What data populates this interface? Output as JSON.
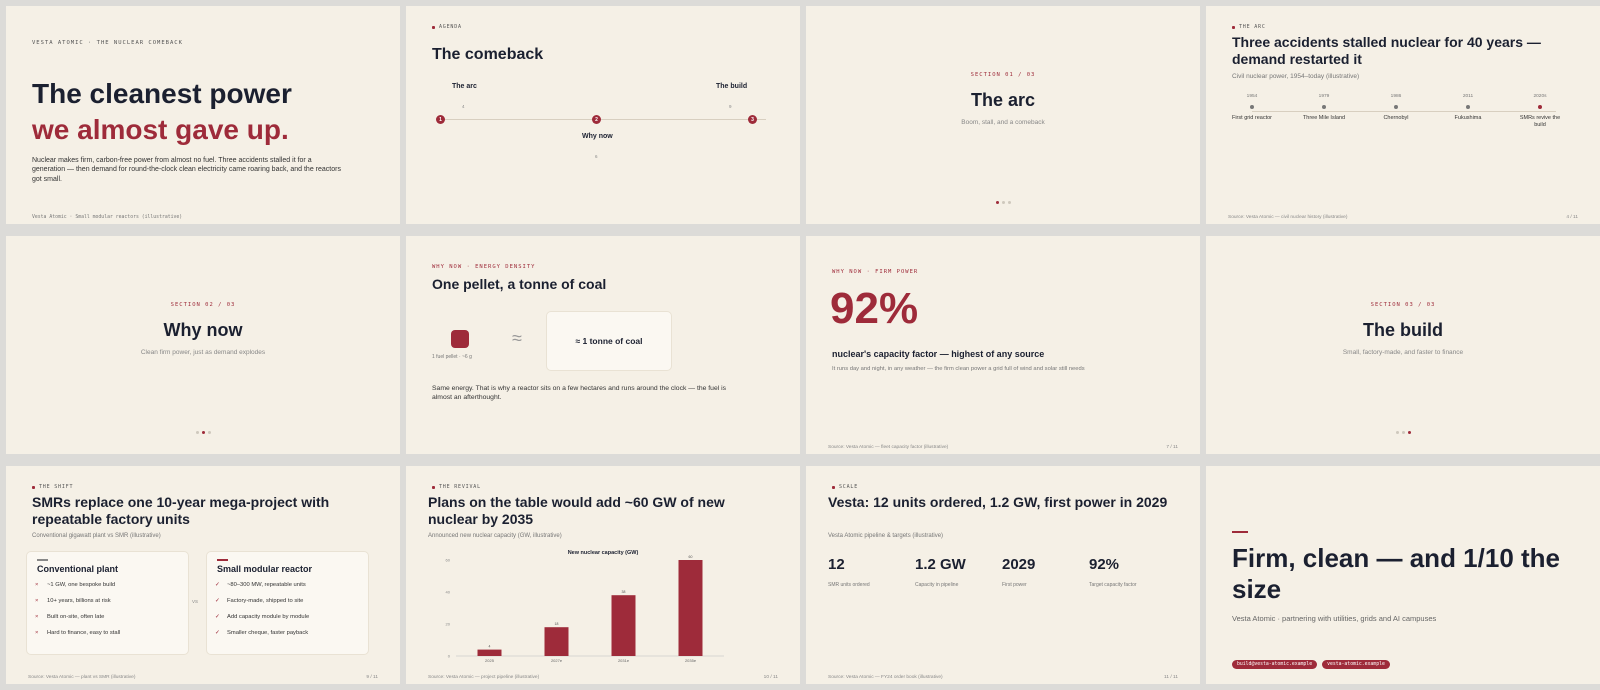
{
  "s1": {
    "kicker": "VESTA ATOMIC · THE NUCLEAR COMEBACK",
    "title_a": "The cleanest power",
    "title_b": "we almost gave up.",
    "body": "Nuclear makes firm, carbon-free power from almost no fuel. Three accidents stalled it for a generation — then demand for round-the-clock clean electricity came roaring back, and the reactors got small.",
    "footer": "Vesta Atomic · Small modular reactors (illustrative)"
  },
  "s2": {
    "kicker": "AGENDA",
    "title": "The comeback",
    "items": [
      {
        "num": "1",
        "label": "The arc",
        "page": "4"
      },
      {
        "num": "2",
        "label": "Why now",
        "page": "6"
      },
      {
        "num": "3",
        "label": "The build",
        "page": "9"
      }
    ]
  },
  "s3": {
    "kicker": "SECTION 01 / 03",
    "title": "The arc",
    "sub": "Boom, stall, and a comeback"
  },
  "s4": {
    "kicker": "THE ARC",
    "title": "Three accidents stalled nuclear for 40 years — demand restarted it",
    "sub": "Civil nuclear power, 1954–today (illustrative)",
    "events": [
      {
        "year": "1954",
        "label": "First grid reactor"
      },
      {
        "year": "1979",
        "label": "Three Mile Island"
      },
      {
        "year": "1986",
        "label": "Chernobyl"
      },
      {
        "year": "2011",
        "label": "Fukushima"
      },
      {
        "year": "2020s",
        "label": "SMRs revive the build"
      }
    ],
    "footer_left": "Source: Vesta Atomic — civil nuclear history (illustrative)",
    "footer_right": "4 / 11"
  },
  "s5": {
    "kicker": "SECTION 02 / 03",
    "title": "Why now",
    "sub": "Clean firm power, just as demand explodes"
  },
  "s6": {
    "kicker": "WHY NOW · ENERGY DENSITY",
    "title": "One pellet, a tonne of coal",
    "pellet_label": "1 fuel pellet · ~6 g",
    "approx": "≈",
    "coal_label": "≈ 1 tonne of coal",
    "body": "Same energy. That is why a reactor sits on a few hectares and runs around the clock — the fuel is almost an afterthought."
  },
  "s7": {
    "kicker": "WHY NOW · FIRM POWER",
    "big": "92%",
    "headline": "nuclear's capacity factor — highest of any source",
    "sub": "It runs day and night, in any weather — the firm clean power a grid full of wind and solar still needs",
    "footer_left": "Source: Vesta Atomic — fleet capacity factor (illustrative)",
    "footer_right": "7 / 11"
  },
  "s8": {
    "kicker": "SECTION 03 / 03",
    "title": "The build",
    "sub": "Small, factory-made, and faster to finance"
  },
  "s9": {
    "kicker": "THE SHIFT",
    "title": "SMRs replace one 10-year mega-project with repeatable factory units",
    "sub": "Conventional gigawatt plant vs SMR (illustrative)",
    "vs": "VS",
    "left": {
      "title": "Conventional plant",
      "mark": "×",
      "items": [
        "~1 GW, one bespoke build",
        "10+ years, billions at risk",
        "Built on-site, often late",
        "Hard to finance, easy to stall"
      ]
    },
    "right": {
      "title": "Small modular reactor",
      "mark": "✓",
      "items": [
        "~80–300 MW, repeatable units",
        "Factory-made, shipped to site",
        "Add capacity module by module",
        "Smaller cheque, faster payback"
      ]
    },
    "footer_left": "Source: Vesta Atomic — plant vs SMR (illustrative)",
    "footer_right": "9 / 11"
  },
  "s10": {
    "kicker": "THE REVIVAL",
    "title": "Plans on the table would add ~60 GW of new nuclear by 2035",
    "sub": "Announced new nuclear capacity (GW, illustrative)",
    "footer_left": "Source: Vesta Atomic — project pipeline (illustrative)",
    "footer_right": "10 / 11"
  },
  "s11": {
    "kicker": "SCALE",
    "title": "Vesta: 12 units ordered, 1.2 GW, first power in 2029",
    "sub": "Vesta Atomic pipeline & targets (illustrative)",
    "stats": [
      {
        "value": "12",
        "label": "SMR units ordered"
      },
      {
        "value": "1.2 GW",
        "label": "Capacity in pipeline"
      },
      {
        "value": "2029",
        "label": "First power"
      },
      {
        "value": "92%",
        "label": "Target capacity factor"
      }
    ],
    "footer_left": "Source: Vesta Atomic — FY24 order book (illustrative)",
    "footer_right": "11 / 11"
  },
  "s12": {
    "title": "Firm, clean — and 1/10 the size",
    "sub": "Vesta Atomic · partnering with utilities, grids and AI campuses",
    "email": "build@vesta-atomic.example",
    "site": "vesta-atomic.example"
  },
  "chart_data": {
    "type": "bar",
    "title": "New nuclear capacity (GW)",
    "categories": [
      "2025",
      "2027e",
      "2031e",
      "2035e"
    ],
    "values": [
      4,
      18,
      38,
      60
    ],
    "ylim": [
      0,
      60
    ],
    "yticks": [
      0,
      20,
      40,
      60
    ],
    "color": "#9e2b3a",
    "grid": false
  },
  "colors": {
    "accent": "#9e2b3a",
    "background": "#f5f0e6",
    "ink": "#1b2030"
  }
}
